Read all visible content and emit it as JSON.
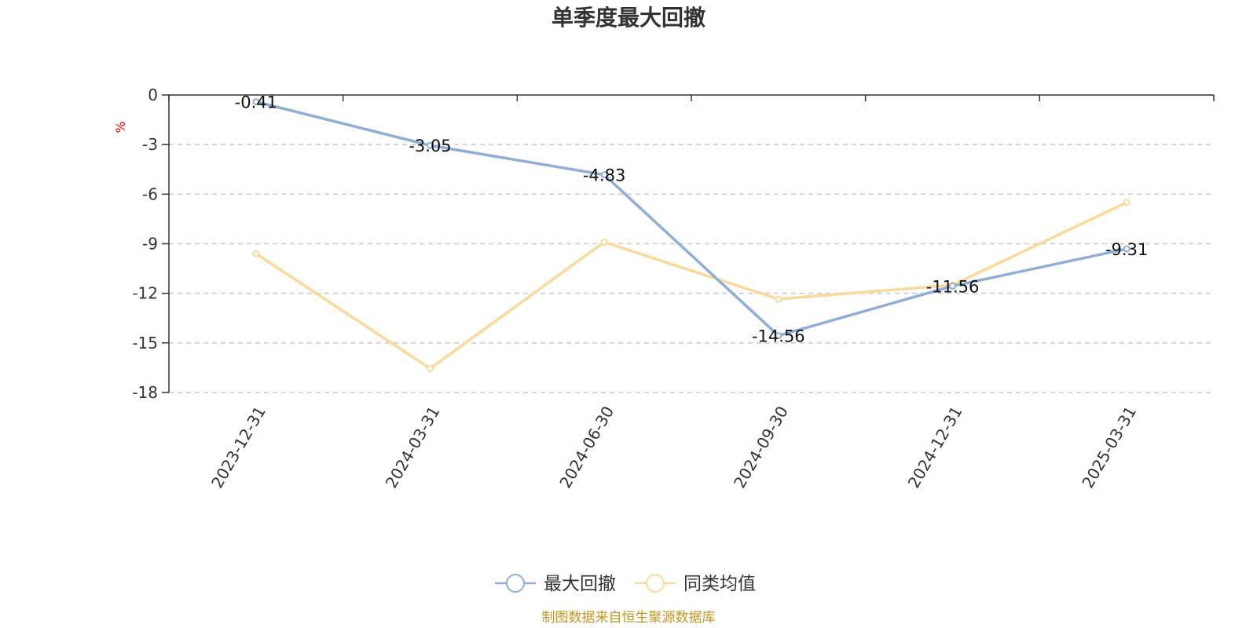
{
  "chart_data": {
    "type": "line",
    "title": "单季度最大回撤",
    "ylabel": "%",
    "categories": [
      "2023-12-31",
      "2024-03-31",
      "2024-06-30",
      "2024-09-30",
      "2024-12-31",
      "2025-03-31"
    ],
    "ylim": [
      -18,
      0
    ],
    "yticks": [
      0,
      -3,
      -6,
      -9,
      -12,
      -15,
      -18
    ],
    "grid": "horizontal dashed",
    "legend_position": "bottom-center",
    "series": [
      {
        "name": "最大回撤",
        "values": [
          -0.41,
          -3.05,
          -4.83,
          -14.56,
          -11.56,
          -9.31
        ],
        "labels": [
          "-0.41",
          "-3.05",
          "-4.83",
          "-14.56",
          "-11.56",
          "-9.31"
        ],
        "color": "#8eadd8"
      },
      {
        "name": "同类均值",
        "values": [
          -9.6,
          -16.55,
          -8.9,
          -12.35,
          -11.5,
          -6.5
        ],
        "color": "#fbd99a"
      }
    ],
    "source": "制图数据来自恒生聚源数据库"
  }
}
